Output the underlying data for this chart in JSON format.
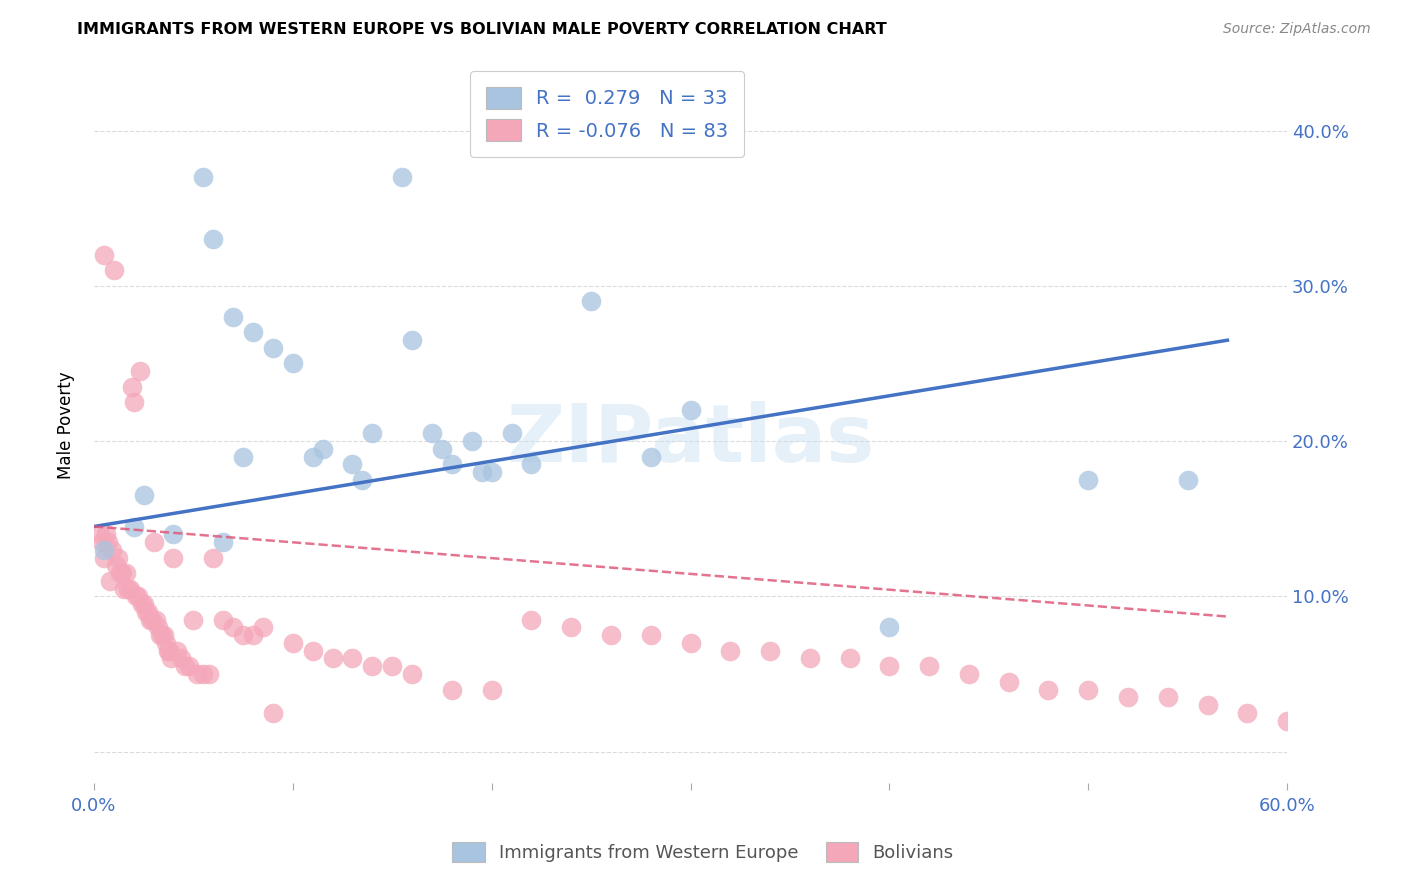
{
  "title": "IMMIGRANTS FROM WESTERN EUROPE VS BOLIVIAN MALE POVERTY CORRELATION CHART",
  "source": "Source: ZipAtlas.com",
  "ylabel": "Male Poverty",
  "xlim": [
    0.0,
    0.6
  ],
  "ylim": [
    -0.02,
    0.44
  ],
  "xtick_vals": [
    0.0,
    0.1,
    0.2,
    0.3,
    0.4,
    0.5,
    0.6
  ],
  "xticklabels": [
    "0.0%",
    "",
    "",
    "",
    "",
    "",
    "60.0%"
  ],
  "ytick_vals": [
    0.0,
    0.1,
    0.2,
    0.3,
    0.4
  ],
  "yticklabels": [
    "",
    "10.0%",
    "20.0%",
    "30.0%",
    "40.0%"
  ],
  "legend_label1": "Immigrants from Western Europe",
  "legend_label2": "Bolivians",
  "r1": 0.279,
  "n1": 33,
  "r2": -0.076,
  "n2": 83,
  "color_blue": "#a8c4e0",
  "color_pink": "#f4a7b9",
  "line_blue": "#4472c4",
  "line_pink": "#e05a7a",
  "watermark": "ZIPatlas",
  "blue_line_x0": 0.0,
  "blue_line_y0": 0.145,
  "blue_line_x1": 0.57,
  "blue_line_y1": 0.265,
  "pink_line_x0": 0.0,
  "pink_line_y0": 0.145,
  "pink_line_x1": 0.57,
  "pink_line_y1": 0.087,
  "blue_scatter_x": [
    0.005,
    0.02,
    0.025,
    0.04,
    0.055,
    0.06,
    0.065,
    0.07,
    0.075,
    0.08,
    0.09,
    0.1,
    0.11,
    0.115,
    0.13,
    0.135,
    0.14,
    0.155,
    0.16,
    0.17,
    0.175,
    0.18,
    0.19,
    0.195,
    0.2,
    0.21,
    0.22,
    0.25,
    0.28,
    0.3,
    0.4,
    0.5,
    0.55
  ],
  "blue_scatter_y": [
    0.13,
    0.145,
    0.165,
    0.14,
    0.37,
    0.33,
    0.135,
    0.28,
    0.19,
    0.27,
    0.26,
    0.25,
    0.19,
    0.195,
    0.185,
    0.175,
    0.205,
    0.37,
    0.265,
    0.205,
    0.195,
    0.185,
    0.2,
    0.18,
    0.18,
    0.205,
    0.185,
    0.29,
    0.19,
    0.22,
    0.08,
    0.175,
    0.175
  ],
  "pink_scatter_x": [
    0.003,
    0.004,
    0.005,
    0.006,
    0.007,
    0.008,
    0.009,
    0.01,
    0.011,
    0.012,
    0.013,
    0.014,
    0.015,
    0.016,
    0.017,
    0.018,
    0.019,
    0.02,
    0.021,
    0.022,
    0.023,
    0.024,
    0.025,
    0.026,
    0.027,
    0.028,
    0.029,
    0.03,
    0.031,
    0.032,
    0.033,
    0.034,
    0.035,
    0.036,
    0.037,
    0.038,
    0.039,
    0.04,
    0.042,
    0.044,
    0.046,
    0.048,
    0.05,
    0.052,
    0.055,
    0.058,
    0.06,
    0.065,
    0.07,
    0.075,
    0.08,
    0.085,
    0.09,
    0.1,
    0.11,
    0.12,
    0.13,
    0.14,
    0.15,
    0.16,
    0.18,
    0.2,
    0.22,
    0.24,
    0.26,
    0.28,
    0.3,
    0.32,
    0.34,
    0.36,
    0.38,
    0.4,
    0.42,
    0.44,
    0.46,
    0.48,
    0.5,
    0.52,
    0.54,
    0.56,
    0.58,
    0.6,
    0.005
  ],
  "pink_scatter_y": [
    0.14,
    0.135,
    0.125,
    0.14,
    0.135,
    0.11,
    0.13,
    0.31,
    0.12,
    0.125,
    0.115,
    0.115,
    0.105,
    0.115,
    0.105,
    0.105,
    0.235,
    0.225,
    0.1,
    0.1,
    0.245,
    0.095,
    0.095,
    0.09,
    0.09,
    0.085,
    0.085,
    0.135,
    0.085,
    0.08,
    0.075,
    0.075,
    0.075,
    0.07,
    0.065,
    0.065,
    0.06,
    0.125,
    0.065,
    0.06,
    0.055,
    0.055,
    0.085,
    0.05,
    0.05,
    0.05,
    0.125,
    0.085,
    0.08,
    0.075,
    0.075,
    0.08,
    0.025,
    0.07,
    0.065,
    0.06,
    0.06,
    0.055,
    0.055,
    0.05,
    0.04,
    0.04,
    0.085,
    0.08,
    0.075,
    0.075,
    0.07,
    0.065,
    0.065,
    0.06,
    0.06,
    0.055,
    0.055,
    0.05,
    0.045,
    0.04,
    0.04,
    0.035,
    0.035,
    0.03,
    0.025,
    0.02,
    0.32
  ]
}
